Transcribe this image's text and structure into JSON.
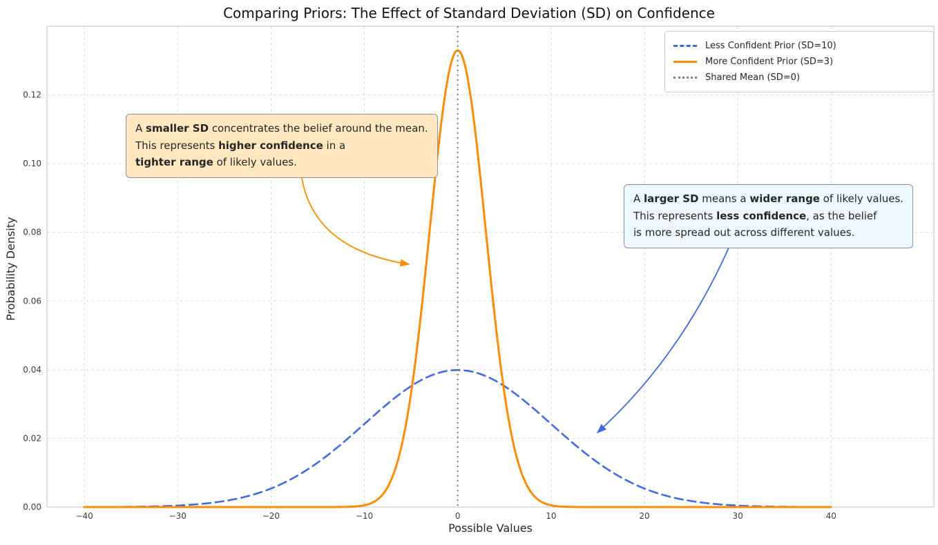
{
  "chart_data": {
    "type": "line",
    "title": "Comparing Priors: The Effect of Standard Deviation (SD) on Confidence",
    "xlabel": "Possible Values",
    "ylabel": "Probability Density",
    "xlim": [
      -44,
      51
    ],
    "ylim": [
      0,
      0.14
    ],
    "xticks": [
      -40,
      -30,
      -20,
      -10,
      0,
      10,
      20,
      30,
      40
    ],
    "yticks": [
      0,
      0.02,
      0.04,
      0.06,
      0.08,
      0.1,
      0.12
    ],
    "grid": true,
    "grid_style": "dashed",
    "legend_position": "upper right",
    "data_x_range": [
      -40,
      40
    ],
    "series": [
      {
        "name": "Less Confident Prior (SD=10)",
        "distribution": "normal",
        "mean": 0,
        "sd": 10,
        "peak_density": 0.0399,
        "color": "#4169E1",
        "style": "dashed",
        "linewidth": 2.6
      },
      {
        "name": "More Confident Prior (SD=3)",
        "distribution": "normal",
        "mean": 0,
        "sd": 3,
        "peak_density": 0.133,
        "color": "#FF8C00",
        "style": "solid",
        "linewidth": 3
      },
      {
        "name": "Shared Mean (SD=0)",
        "distribution": "vline",
        "x": 0,
        "color": "#808080",
        "style": "dotted",
        "linewidth": 2
      }
    ]
  },
  "annotations": [
    {
      "id": "smaller-sd",
      "bg": "#FFE7C0",
      "border": "#8f8f8f",
      "arrow_color": "#FF8C00",
      "lines": [
        [
          {
            "t": "A "
          },
          {
            "t": "smaller SD",
            "b": true
          },
          {
            "t": " concentrates the belief around the mean."
          }
        ],
        [
          {
            "t": "This represents "
          },
          {
            "t": "higher confidence",
            "b": true
          },
          {
            "t": " in a"
          }
        ],
        [
          {
            "t": "tighter range",
            "b": true
          },
          {
            "t": " of likely values."
          }
        ]
      ]
    },
    {
      "id": "larger-sd",
      "bg": "#EFF6FE",
      "border": "#7d91b4",
      "arrow_color": "#4169E1",
      "lines": [
        [
          {
            "t": "A "
          },
          {
            "t": "larger SD",
            "b": true
          },
          {
            "t": " means a "
          },
          {
            "t": "wider range",
            "b": true
          },
          {
            "t": " of likely values."
          }
        ],
        [
          {
            "t": "This represents "
          },
          {
            "t": "less confidence",
            "b": true
          },
          {
            "t": ", as the belief"
          }
        ],
        [
          {
            "t": "is more spread out across different values."
          }
        ]
      ]
    }
  ],
  "colors": {
    "grid": "#d8d8d8",
    "frame": "#cccccc",
    "tick_text": "#3b3b3b",
    "background": "#ffffff"
  }
}
